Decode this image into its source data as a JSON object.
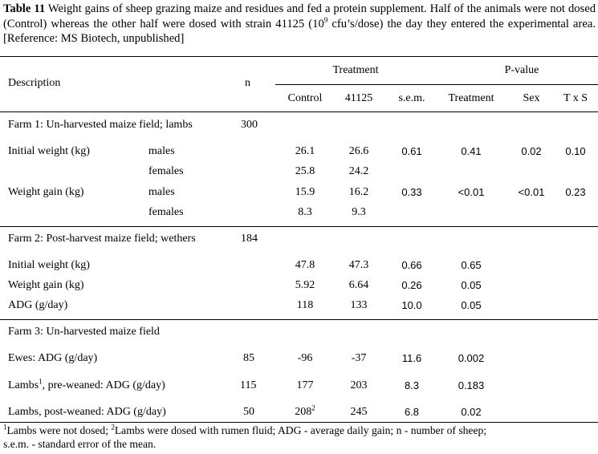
{
  "caption": {
    "label": "Table 11",
    "text_a": " Weight gains of sheep grazing maize and residues and fed a protein supplement. Half of the animals were not dosed (Control) whereas the other half were dosed with strain 41125 (10",
    "exp": "9",
    "text_b": " cfu’s/dose) the day they entered the experimental area. [Reference: MS Biotech, unpublished]"
  },
  "header": {
    "description": "Description",
    "n": "n",
    "treatment": "Treatment",
    "pvalue": "P-value",
    "control": "Control",
    "strain": "41125",
    "sem": "s.e.m.",
    "p_treatment": "Treatment",
    "p_sex": "Sex",
    "p_txs": "T x S"
  },
  "farm1": {
    "title": "Farm 1: Un-harvested maize field; lambs",
    "n": "300",
    "rows": [
      {
        "desc": "Initial weight (kg)",
        "sub": "males",
        "control": "26.1",
        "strain": "26.6",
        "sem": "0.61",
        "p_t": "0.41",
        "p_s": "0.02",
        "p_ts": "0.10"
      },
      {
        "desc": "",
        "sub": "females",
        "control": "25.8",
        "strain": "24.2",
        "sem": "",
        "p_t": "",
        "p_s": "",
        "p_ts": ""
      },
      {
        "desc": "Weight gain (kg)",
        "sub": "males",
        "control": "15.9",
        "strain": "16.2",
        "sem": "0.33",
        "p_t": "<0.01",
        "p_s": "<0.01",
        "p_ts": "0.23"
      },
      {
        "desc": "",
        "sub": "females",
        "control": "8.3",
        "strain": "9.3",
        "sem": "",
        "p_t": "",
        "p_s": "",
        "p_ts": ""
      }
    ]
  },
  "farm2": {
    "title": "Farm 2: Post-harvest maize field; wethers",
    "n": "184",
    "rows": [
      {
        "desc": "Initial weight (kg)",
        "control": "47.8",
        "strain": "47.3",
        "sem": "0.66",
        "p_t": "0.65"
      },
      {
        "desc": "Weight gain (kg)",
        "control": "5.92",
        "strain": "6.64",
        "sem": "0.26",
        "p_t": "0.05"
      },
      {
        "desc": "ADG (g/day)",
        "control": "118",
        "strain": "133",
        "sem": "10.0",
        "p_t": "0.05"
      }
    ]
  },
  "farm3": {
    "title": "Farm 3: Un-harvested maize field",
    "rows": [
      {
        "desc": "Ewes: ADG (g/day)",
        "n": "85",
        "control": "-96",
        "strain": "-37",
        "sem": "11.6",
        "p_t": "0.002"
      },
      {
        "desc_a": "Lambs",
        "desc_sup": "1",
        "desc_b": ", pre-weaned: ADG (g/day)",
        "n": "115",
        "control": "177",
        "strain": "203",
        "sem": "8.3",
        "p_t": "0.183"
      },
      {
        "desc": "Lambs, post-weaned: ADG (g/day)",
        "n": "50",
        "control": "208",
        "control_sup": "2",
        "strain": "245",
        "sem": "6.8",
        "p_t": "0.02"
      }
    ]
  },
  "footnote": {
    "sup1": "1",
    "text1": "Lambs were not dosed; ",
    "sup2": "2",
    "text2": "Lambs were dosed with rumen fluid; ADG - average daily gain; n - number of sheep;",
    "line2": "s.e.m. - standard error of the mean."
  }
}
